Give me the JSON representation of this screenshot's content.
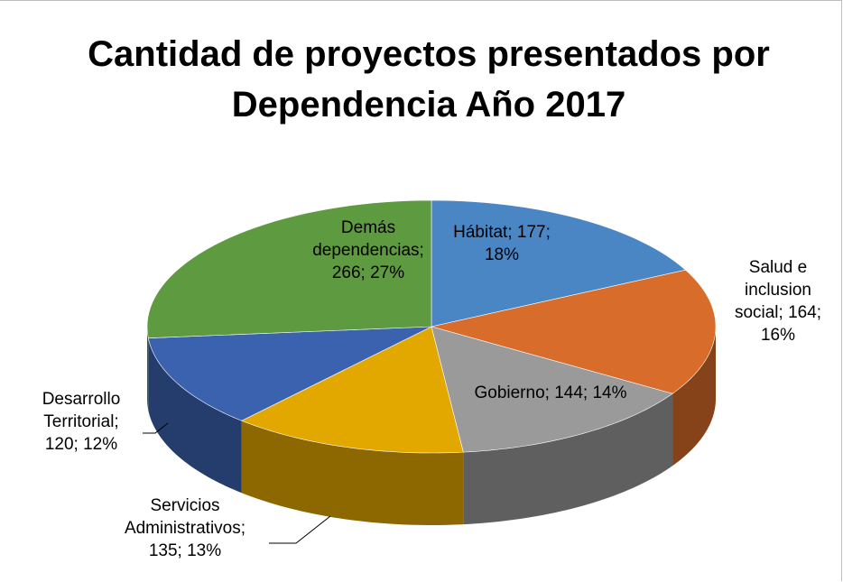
{
  "chart_data": {
    "type": "pie",
    "title": "Cantidad de proyectos presentados por Dependencia Año 2017",
    "values": [
      177,
      164,
      144,
      135,
      120,
      266
    ],
    "value_labels": [
      "Hábitat; 177; 18%",
      "Salud e inclusion social; 164; 16%",
      "Gobierno; 144; 14%",
      "Servicios Administrativos; 135; 13%",
      "Desarrollo Territorial; 120; 12%",
      "Demás dependencias; 266; 27%"
    ],
    "colors": [
      "#4a86c4",
      "#d86c2a",
      "#9a9a9a",
      "#e3a800",
      "#3a62ae",
      "#5e9a3f"
    ]
  }
}
